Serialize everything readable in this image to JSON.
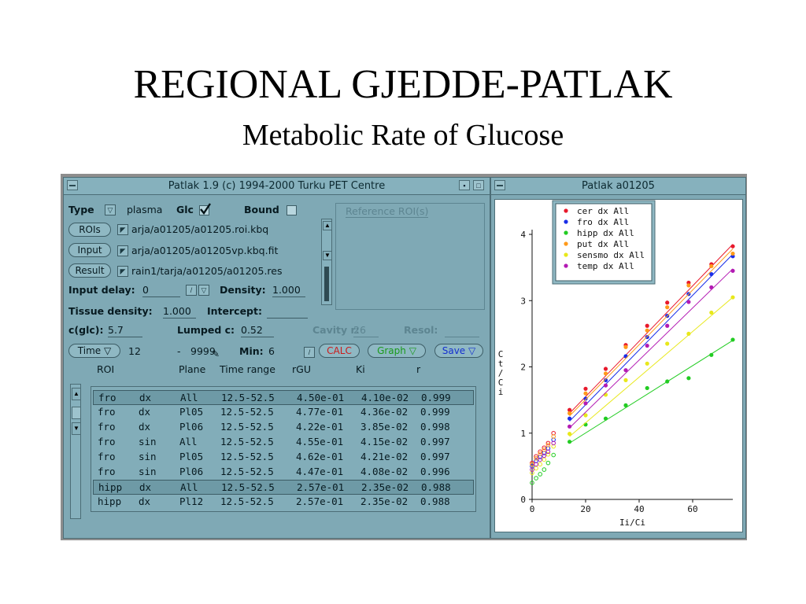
{
  "slide": {
    "title": "REGIONAL GJEDDE-PATLAK",
    "subtitle": "Metabolic Rate of Glucose"
  },
  "main_window": {
    "title": "Patlak 1.9  (c) 1994-2000 Turku PET Centre",
    "type_label": "Type",
    "type_value": "plasma",
    "glc_label": "Glc",
    "glc_checked": true,
    "bound_label": "Bound",
    "bound_checked": false,
    "reference_label": "Reference ROI(s)",
    "rois_button": "ROIs",
    "rois_path": "arja/a01205/a01205.roi.kbq",
    "input_button": "Input",
    "input_path": "arja/a01205/a01205vp.kbq.fit",
    "result_button": "Result",
    "result_path": "rain1/tarja/a01205/a01205.res",
    "input_delay_label": "Input delay:",
    "input_delay_value": "0",
    "density_label": "Density:",
    "density_value": "1.000",
    "tissue_density_label": "Tissue density:",
    "tissue_density_value": "1.000",
    "intercept_label": "Intercept:",
    "intercept_value": "",
    "cglc_label": "c(glc):",
    "cglc_value": "5.7",
    "lumped_label": "Lumped c:",
    "lumped_value": "0.52",
    "cavity_label": "Cavity r:",
    "cavity_value": "26",
    "resol_label": "Resol:",
    "time_button": "Time",
    "time_start": "12",
    "time_sep": "-",
    "time_end": "9999",
    "min_label": "Min:",
    "min_value": "6",
    "calc_button": "CALC",
    "graph_button": "Graph",
    "save_button": "Save",
    "columns": [
      "ROI",
      "Plane",
      "Time range",
      "rGU",
      "Ki",
      "r"
    ],
    "rows": [
      {
        "roi": "fro",
        "side": "dx",
        "plane": "All",
        "time": "12.5-52.5",
        "rgu": "4.50e-01",
        "ki": "4.10e-02",
        "r": "0.999",
        "selected": true
      },
      {
        "roi": "fro",
        "side": "dx",
        "plane": "Pl05",
        "time": "12.5-52.5",
        "rgu": "4.77e-01",
        "ki": "4.36e-02",
        "r": "0.999",
        "selected": false
      },
      {
        "roi": "fro",
        "side": "dx",
        "plane": "Pl06",
        "time": "12.5-52.5",
        "rgu": "4.22e-01",
        "ki": "3.85e-02",
        "r": "0.998",
        "selected": false
      },
      {
        "roi": "fro",
        "side": "sin",
        "plane": "All",
        "time": "12.5-52.5",
        "rgu": "4.55e-01",
        "ki": "4.15e-02",
        "r": "0.997",
        "selected": false
      },
      {
        "roi": "fro",
        "side": "sin",
        "plane": "Pl05",
        "time": "12.5-52.5",
        "rgu": "4.62e-01",
        "ki": "4.21e-02",
        "r": "0.997",
        "selected": false
      },
      {
        "roi": "fro",
        "side": "sin",
        "plane": "Pl06",
        "time": "12.5-52.5",
        "rgu": "4.47e-01",
        "ki": "4.08e-02",
        "r": "0.996",
        "selected": false
      },
      {
        "roi": "hipp",
        "side": "dx",
        "plane": "All",
        "time": "12.5-52.5",
        "rgu": "2.57e-01",
        "ki": "2.35e-02",
        "r": "0.988",
        "selected": true
      },
      {
        "roi": "hipp",
        "side": "dx",
        "plane": "Pl12",
        "time": "12.5-52.5",
        "rgu": "2.57e-01",
        "ki": "2.35e-02",
        "r": "0.988",
        "selected": false
      }
    ]
  },
  "plot_window": {
    "title": "Patlak a01205"
  },
  "chart_data": {
    "type": "scatter",
    "xlabel": "Ii/Ci",
    "ylabel": "Ct/Ci",
    "xlim": [
      0,
      75
    ],
    "ylim": [
      0,
      4
    ],
    "xticks": [
      "0",
      "20",
      "40",
      "60"
    ],
    "yticks": [
      "0",
      "1",
      "2",
      "3",
      "4"
    ],
    "legend_position": "top",
    "x_points": [
      14,
      20,
      27.5,
      35,
      43,
      50.5,
      58.5,
      67,
      75
    ],
    "early_x": [
      0,
      1.5,
      3,
      4.5,
      6,
      8
    ],
    "series": [
      {
        "name": "cer dx All",
        "color": "#e8192c",
        "values": [
          1.35,
          1.67,
          1.97,
          2.33,
          2.62,
          2.97,
          3.27,
          3.55,
          3.82
        ],
        "early": [
          0.55,
          0.65,
          0.72,
          0.78,
          0.85,
          1.0
        ],
        "fit": [
          1.3,
          3.85
        ]
      },
      {
        "name": "fro dx All",
        "color": "#1a2ee8",
        "values": [
          1.22,
          1.52,
          1.8,
          2.16,
          2.45,
          2.77,
          3.1,
          3.4,
          3.67
        ],
        "early": [
          0.5,
          0.58,
          0.64,
          0.7,
          0.77,
          0.9
        ],
        "fit": [
          1.18,
          3.7
        ]
      },
      {
        "name": "hipp dx All",
        "color": "#22cc22",
        "values": [
          0.87,
          1.13,
          1.22,
          1.42,
          1.68,
          1.78,
          1.83,
          2.18,
          2.41
        ],
        "early": [
          0.25,
          0.32,
          0.38,
          0.45,
          0.55,
          0.67
        ],
        "fit": [
          0.85,
          2.4
        ]
      },
      {
        "name": "put dx All",
        "color": "#ff9a1a",
        "values": [
          1.3,
          1.6,
          1.9,
          2.3,
          2.55,
          2.9,
          3.23,
          3.52,
          3.71
        ],
        "early": [
          0.53,
          0.62,
          0.69,
          0.75,
          0.82,
          0.95
        ],
        "fit": [
          1.26,
          3.78
        ]
      },
      {
        "name": "sensmo dx All",
        "color": "#e8e81a",
        "values": [
          0.99,
          1.27,
          1.58,
          1.8,
          2.05,
          2.35,
          2.5,
          2.82,
          3.05
        ],
        "early": [
          0.4,
          0.47,
          0.53,
          0.6,
          0.68,
          0.8
        ],
        "fit": [
          0.95,
          3.05
        ]
      },
      {
        "name": "temp dx All",
        "color": "#b31ab3",
        "values": [
          1.1,
          1.45,
          1.72,
          1.95,
          2.32,
          2.62,
          2.98,
          3.2,
          3.45
        ],
        "early": [
          0.45,
          0.53,
          0.6,
          0.66,
          0.72,
          0.85
        ],
        "fit": [
          1.08,
          3.48
        ]
      }
    ]
  }
}
